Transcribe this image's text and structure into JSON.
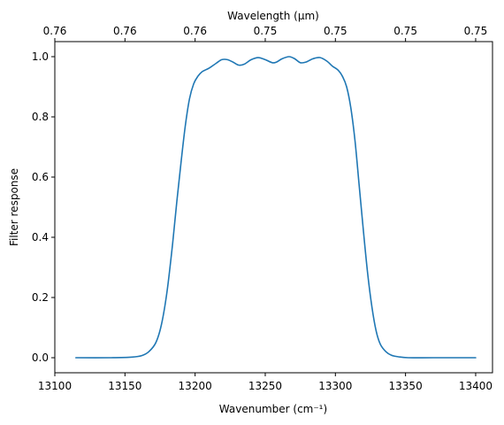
{
  "chart_data": {
    "type": "line",
    "xlabel": "Wavenumber (cm⁻¹)",
    "ylabel": "Filter response",
    "top_xlabel": "Wavelength (μm)",
    "xlim": [
      13100,
      13412
    ],
    "ylim": [
      -0.05,
      1.05
    ],
    "x_ticks": [
      13100,
      13150,
      13200,
      13250,
      13300,
      13350,
      13400
    ],
    "y_ticks": [
      0.0,
      0.2,
      0.4,
      0.6,
      0.8,
      1.0
    ],
    "top_ticks": [
      {
        "x": 13100,
        "label": "0.76"
      },
      {
        "x": 13150,
        "label": "0.76"
      },
      {
        "x": 13200,
        "label": "0.76"
      },
      {
        "x": 13250,
        "label": "0.75"
      },
      {
        "x": 13300,
        "label": "0.75"
      },
      {
        "x": 13350,
        "label": "0.75"
      },
      {
        "x": 13400,
        "label": "0.75"
      }
    ],
    "grid": false,
    "colors": {
      "line": "#1f77b4"
    },
    "series": [
      {
        "x": [
          13115,
          13140,
          13155,
          13162,
          13167,
          13172,
          13176,
          13180,
          13184,
          13187,
          13190,
          13193,
          13196,
          13199,
          13202,
          13205,
          13210,
          13215,
          13219,
          13223,
          13227,
          13231,
          13235,
          13240,
          13245,
          13250,
          13255,
          13258,
          13262,
          13267,
          13271,
          13275,
          13279,
          13284,
          13289,
          13294,
          13298,
          13302,
          13305,
          13308,
          13311,
          13314,
          13317,
          13320,
          13323,
          13326,
          13329,
          13332,
          13336,
          13340,
          13345,
          13352,
          13370,
          13400
        ],
        "y": [
          0.0,
          0.0,
          0.002,
          0.007,
          0.02,
          0.05,
          0.11,
          0.22,
          0.38,
          0.52,
          0.65,
          0.77,
          0.86,
          0.91,
          0.935,
          0.95,
          0.962,
          0.978,
          0.99,
          0.99,
          0.982,
          0.972,
          0.975,
          0.99,
          0.997,
          0.99,
          0.98,
          0.982,
          0.993,
          1.0,
          0.993,
          0.98,
          0.982,
          0.993,
          0.997,
          0.985,
          0.968,
          0.955,
          0.935,
          0.9,
          0.83,
          0.72,
          0.57,
          0.42,
          0.28,
          0.17,
          0.09,
          0.045,
          0.02,
          0.008,
          0.003,
          0.0,
          0.0,
          0.0
        ]
      }
    ]
  }
}
